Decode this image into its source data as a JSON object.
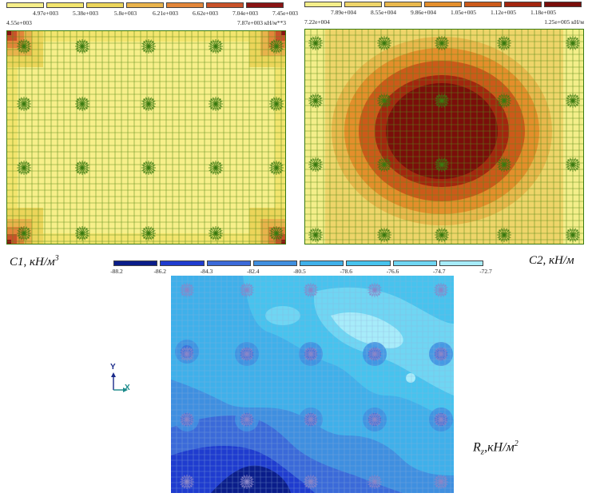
{
  "panels": {
    "c1": {
      "caption": "C1, кН/м",
      "caption_exp": "3",
      "legend_top": [
        "4.97e+003",
        "5.38e+003",
        "5.8e+003",
        "6.21e+003",
        "6.62e+003",
        "7.04e+003",
        "7.45e+003"
      ],
      "legend_min": "4.55e+003",
      "legend_max": "7.87e+003 кН/м**3",
      "colors": [
        "#f7ef8a",
        "#f3e56e",
        "#ecd55a",
        "#e9b34c",
        "#e3863a",
        "#c9522a",
        "#8a1414"
      ]
    },
    "c2": {
      "caption": "C2, кН/м",
      "legend_top": [
        "7.89e+004",
        "8.55e+004",
        "9.86e+004",
        "1.05e+005",
        "1.12e+005",
        "1.18e+005"
      ],
      "legend_min": "7.22e+004",
      "legend_max": "1.25e+005 кН/м",
      "colors": [
        "#f4ee8a",
        "#eed56a",
        "#e9b84d",
        "#e48f2c",
        "#cc5a1a",
        "#a3260f",
        "#7a0e0a"
      ]
    },
    "rz": {
      "caption": "R",
      "caption_sub": "z",
      "caption_rest": ",кН/м",
      "caption_exp": "2",
      "legend": [
        "-88.2",
        "-86.2",
        "-84.3",
        "-82.4",
        "-80.5",
        "-78.6",
        "-76.6",
        "-74.7",
        "-72.7"
      ],
      "colors": [
        "#0a1d8a",
        "#1f3ccf",
        "#3b6ad9",
        "#3f8fe0",
        "#3fb0ea",
        "#47c3ee",
        "#6fd6f3",
        "#a7ecfa"
      ]
    }
  },
  "axis": {
    "y_label": "Y",
    "x_label": "X"
  }
}
